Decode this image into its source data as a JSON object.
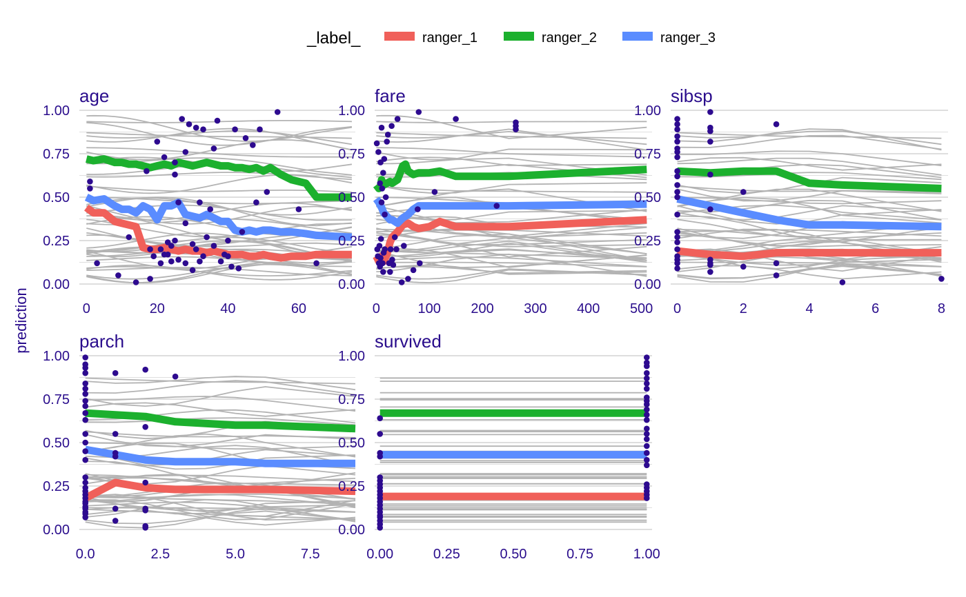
{
  "chart_data": {
    "type": "line",
    "ylabel": "prediction",
    "legend": {
      "title": "_label_",
      "position": "top",
      "entries": [
        {
          "name": "ranger_1",
          "color": "#f0605a"
        },
        {
          "name": "ranger_2",
          "color": "#1cb02e"
        },
        {
          "name": "ranger_3",
          "color": "#5a8cff"
        }
      ]
    },
    "colors": {
      "ice": "#b3b3b3",
      "points": "#2d0a8f",
      "grid": "#dedede",
      "text": "#2a0d8c"
    },
    "ylim": [
      0,
      1
    ],
    "yticks": [
      0,
      0.25,
      0.5,
      0.75,
      1
    ],
    "ytick_labels": [
      "0.00",
      "0.25",
      "0.50",
      "0.75",
      "1.00"
    ],
    "grid": true,
    "panels": [
      {
        "title": "age",
        "xlim": [
          -2,
          76
        ],
        "xticks": [
          0,
          20,
          40,
          60
        ],
        "xtick_labels": [
          "0",
          "20",
          "40",
          "60"
        ],
        "series": [
          {
            "name": "ranger_1",
            "x": [
              0,
              2,
              5,
              8,
              10,
              12,
              14,
              16,
              18,
              20,
              22,
              24,
              26,
              28,
              30,
              32,
              34,
              36,
              38,
              40,
              42,
              44,
              46,
              48,
              50,
              52,
              55,
              58,
              62,
              65,
              75
            ],
            "y": [
              0.44,
              0.41,
              0.41,
              0.36,
              0.35,
              0.34,
              0.33,
              0.21,
              0.2,
              0.2,
              0.21,
              0.2,
              0.19,
              0.2,
              0.19,
              0.19,
              0.18,
              0.19,
              0.18,
              0.17,
              0.17,
              0.17,
              0.16,
              0.16,
              0.17,
              0.16,
              0.15,
              0.16,
              0.16,
              0.17,
              0.17
            ]
          },
          {
            "name": "ranger_2",
            "x": [
              0,
              2,
              5,
              8,
              10,
              12,
              14,
              16,
              18,
              20,
              22,
              24,
              26,
              28,
              30,
              32,
              34,
              36,
              38,
              40,
              42,
              44,
              46,
              48,
              50,
              52,
              55,
              58,
              62,
              65,
              75
            ],
            "y": [
              0.72,
              0.71,
              0.72,
              0.7,
              0.7,
              0.69,
              0.69,
              0.68,
              0.67,
              0.68,
              0.69,
              0.68,
              0.7,
              0.69,
              0.68,
              0.69,
              0.7,
              0.69,
              0.68,
              0.68,
              0.67,
              0.67,
              0.66,
              0.67,
              0.65,
              0.67,
              0.63,
              0.6,
              0.58,
              0.5,
              0.5
            ]
          },
          {
            "name": "ranger_3",
            "x": [
              0,
              2,
              5,
              8,
              10,
              12,
              14,
              16,
              18,
              20,
              22,
              24,
              26,
              28,
              30,
              32,
              34,
              36,
              38,
              40,
              42,
              44,
              46,
              48,
              50,
              52,
              55,
              58,
              62,
              65,
              75
            ],
            "y": [
              0.5,
              0.48,
              0.49,
              0.45,
              0.43,
              0.43,
              0.41,
              0.45,
              0.43,
              0.37,
              0.45,
              0.45,
              0.47,
              0.4,
              0.39,
              0.38,
              0.4,
              0.38,
              0.36,
              0.36,
              0.31,
              0.3,
              0.31,
              0.3,
              0.31,
              0.31,
              0.3,
              0.3,
              0.29,
              0.28,
              0.27
            ]
          }
        ],
        "points": {
          "x": [
            1,
            1,
            3,
            9,
            12,
            14,
            17,
            18,
            18,
            19,
            20,
            21,
            21,
            22,
            22,
            23,
            23,
            24,
            24,
            25,
            25,
            25,
            26,
            26,
            27,
            28,
            28,
            28,
            29,
            30,
            30,
            31,
            31,
            32,
            32,
            33,
            33,
            34,
            35,
            36,
            36,
            37,
            38,
            39,
            40,
            40,
            41,
            42,
            43,
            44,
            45,
            47,
            48,
            49,
            51,
            54,
            60,
            65
          ],
          "y": [
            0.59,
            0.55,
            0.12,
            0.05,
            0.27,
            0.01,
            0.65,
            0.03,
            0.2,
            0.16,
            0.82,
            0.12,
            0.2,
            0.17,
            0.73,
            0.17,
            0.24,
            0.22,
            0.13,
            0.25,
            0.63,
            0.7,
            0.47,
            0.14,
            0.95,
            0.12,
            0.35,
            0.76,
            0.92,
            0.08,
            0.23,
            0.9,
            0.2,
            0.13,
            0.47,
            0.89,
            0.16,
            0.27,
            0.43,
            0.22,
            0.78,
            0.94,
            0.13,
            0.17,
            0.16,
            0.25,
            0.1,
            0.89,
            0.09,
            0.3,
            0.84,
            0.8,
            0.47,
            0.89,
            0.53,
            0.99,
            0.43,
            0.12
          ]
        }
      },
      {
        "title": "fare",
        "xlim": [
          -3,
          520
        ],
        "xticks": [
          0,
          100,
          200,
          300,
          400,
          500
        ],
        "xtick_labels": [
          "0",
          "100",
          "200",
          "300",
          "400",
          "500"
        ],
        "series": [
          {
            "name": "ranger_1",
            "x": [
              0,
              5,
              8,
              10,
              14,
              20,
              26,
              30,
              40,
              50,
              60,
              70,
              80,
              100,
              120,
              150,
              250,
              510
            ],
            "y": [
              0.16,
              0.13,
              0.12,
              0.16,
              0.13,
              0.17,
              0.24,
              0.27,
              0.3,
              0.34,
              0.35,
              0.33,
              0.32,
              0.33,
              0.36,
              0.33,
              0.33,
              0.37
            ]
          },
          {
            "name": "ranger_2",
            "x": [
              0,
              5,
              8,
              10,
              14,
              20,
              26,
              30,
              40,
              50,
              55,
              60,
              70,
              80,
              100,
              120,
              150,
              250,
              510
            ],
            "y": [
              0.57,
              0.55,
              0.56,
              0.6,
              0.57,
              0.58,
              0.59,
              0.58,
              0.6,
              0.68,
              0.69,
              0.65,
              0.63,
              0.64,
              0.64,
              0.65,
              0.62,
              0.62,
              0.66
            ]
          },
          {
            "name": "ranger_3",
            "x": [
              0,
              5,
              8,
              10,
              14,
              20,
              26,
              30,
              40,
              50,
              60,
              70,
              80,
              100,
              120,
              150,
              250,
              510
            ],
            "y": [
              0.49,
              0.47,
              0.45,
              0.44,
              0.41,
              0.39,
              0.37,
              0.37,
              0.35,
              0.38,
              0.4,
              0.43,
              0.45,
              0.45,
              0.45,
              0.45,
              0.45,
              0.46
            ]
          }
        ],
        "points": {
          "x": [
            1,
            2,
            3,
            4,
            5,
            6,
            7,
            7,
            8,
            8,
            9,
            10,
            10,
            11,
            12,
            13,
            13,
            14,
            15,
            16,
            16,
            18,
            20,
            22,
            24,
            26,
            27,
            29,
            30,
            32,
            35,
            38,
            40,
            48,
            52,
            60,
            70,
            78,
            80,
            82,
            110,
            150,
            227,
            263,
            263,
            263
          ],
          "y": [
            0.81,
            0.2,
            0.16,
            0.76,
            0.12,
            0.22,
            0.58,
            0.1,
            0.7,
            0.15,
            0.26,
            0.47,
            0.9,
            0.55,
            0.12,
            0.64,
            0.07,
            0.18,
            0.72,
            0.2,
            0.4,
            0.5,
            0.82,
            0.86,
            0.12,
            0.07,
            0.2,
            0.91,
            0.14,
            0.11,
            0.27,
            0.2,
            0.95,
            0.01,
            0.22,
            0.03,
            0.08,
            0.43,
            0.99,
            0.12,
            0.53,
            0.95,
            0.45,
            0.93,
            0.91,
            0.89
          ]
        }
      },
      {
        "title": "sibsp",
        "xlim": [
          -0.2,
          8.2
        ],
        "xticks": [
          0,
          2,
          4,
          6,
          8
        ],
        "xtick_labels": [
          "0",
          "2",
          "4",
          "6",
          "8"
        ],
        "series": [
          {
            "name": "ranger_1",
            "x": [
              0,
              1,
              2,
              3,
              4,
              5,
              8
            ],
            "y": [
              0.19,
              0.17,
              0.16,
              0.18,
              0.18,
              0.18,
              0.18
            ]
          },
          {
            "name": "ranger_2",
            "x": [
              0,
              1,
              2,
              3,
              4,
              5,
              8
            ],
            "y": [
              0.65,
              0.64,
              0.65,
              0.65,
              0.58,
              0.57,
              0.55
            ]
          },
          {
            "name": "ranger_3",
            "x": [
              0,
              1,
              2,
              3,
              4,
              5,
              8
            ],
            "y": [
              0.49,
              0.45,
              0.41,
              0.37,
              0.34,
              0.34,
              0.33
            ]
          }
        ],
        "points": {
          "x": [
            0,
            0,
            0,
            0,
            0,
            0,
            0,
            0,
            0,
            0,
            0,
            0,
            0,
            0,
            0,
            0,
            0,
            0,
            0,
            0,
            0,
            0,
            1,
            1,
            1,
            1,
            1,
            1,
            1,
            1,
            1,
            1,
            2,
            2,
            3,
            3,
            3,
            5,
            8
          ],
          "y": [
            0.95,
            0.92,
            0.89,
            0.85,
            0.82,
            0.78,
            0.76,
            0.73,
            0.65,
            0.62,
            0.57,
            0.53,
            0.5,
            0.4,
            0.3,
            0.27,
            0.24,
            0.2,
            0.16,
            0.14,
            0.12,
            0.09,
            0.99,
            0.9,
            0.88,
            0.82,
            0.63,
            0.43,
            0.14,
            0.12,
            0.11,
            0.07,
            0.53,
            0.1,
            0.92,
            0.12,
            0.05,
            0.01,
            0.03
          ]
        }
      },
      {
        "title": "parch",
        "xlim": [
          -0.2,
          9
        ],
        "xticks": [
          0,
          2.5,
          5,
          7.5
        ],
        "xtick_labels": [
          "0.0",
          "2.5",
          "5.0",
          "7.5"
        ],
        "series": [
          {
            "name": "ranger_1",
            "x": [
              0,
              1,
              2,
              3,
              4,
              5,
              6,
              9
            ],
            "y": [
              0.18,
              0.27,
              0.24,
              0.23,
              0.23,
              0.23,
              0.23,
              0.22
            ]
          },
          {
            "name": "ranger_2",
            "x": [
              0,
              1,
              2,
              3,
              4,
              5,
              6,
              9
            ],
            "y": [
              0.67,
              0.66,
              0.65,
              0.62,
              0.61,
              0.6,
              0.6,
              0.58
            ]
          },
          {
            "name": "ranger_3",
            "x": [
              0,
              1,
              2,
              3,
              4,
              5,
              6,
              9
            ],
            "y": [
              0.46,
              0.43,
              0.4,
              0.39,
              0.39,
              0.39,
              0.38,
              0.38
            ]
          }
        ],
        "points": {
          "x": [
            0,
            0,
            0,
            0,
            0,
            0,
            0,
            0,
            0,
            0,
            0,
            0,
            0,
            0,
            0,
            0,
            0,
            0,
            0,
            0,
            0,
            0,
            0,
            0,
            0,
            0,
            0,
            0,
            1,
            1,
            1,
            1,
            1,
            1,
            2,
            2,
            2,
            2,
            2,
            2,
            2,
            3
          ],
          "y": [
            0.99,
            0.95,
            0.93,
            0.9,
            0.84,
            0.81,
            0.78,
            0.74,
            0.71,
            0.67,
            0.63,
            0.55,
            0.5,
            0.45,
            0.4,
            0.3,
            0.27,
            0.24,
            0.22,
            0.2,
            0.18,
            0.16,
            0.15,
            0.13,
            0.12,
            0.1,
            0.09,
            0.07,
            0.9,
            0.55,
            0.44,
            0.42,
            0.12,
            0.05,
            0.92,
            0.59,
            0.27,
            0.12,
            0.11,
            0.02,
            0.01,
            0.88
          ]
        }
      },
      {
        "title": "survived",
        "xlim": [
          -0.02,
          1.02
        ],
        "xticks": [
          0,
          0.25,
          0.5,
          0.75,
          1
        ],
        "xtick_labels": [
          "0.00",
          "0.25",
          "0.50",
          "0.75",
          "1.00"
        ],
        "series": [
          {
            "name": "ranger_1",
            "x": [
              0,
              1
            ],
            "y": [
              0.19,
              0.19
            ]
          },
          {
            "name": "ranger_2",
            "x": [
              0,
              1
            ],
            "y": [
              0.67,
              0.67
            ]
          },
          {
            "name": "ranger_3",
            "x": [
              0,
              1
            ],
            "y": [
              0.43,
              0.43
            ]
          }
        ],
        "points": {
          "x": [
            0,
            0,
            0,
            0,
            0,
            0,
            0,
            0,
            0,
            0,
            0,
            0,
            0,
            0,
            0,
            0,
            0,
            0,
            0,
            0,
            1,
            1,
            1,
            1,
            1,
            1,
            1,
            1,
            1,
            1,
            1,
            1,
            1,
            1,
            1,
            1,
            1,
            1,
            1,
            1,
            1,
            1,
            1,
            1,
            1
          ],
          "y": [
            0.64,
            0.55,
            0.44,
            0.42,
            0.3,
            0.28,
            0.26,
            0.24,
            0.22,
            0.2,
            0.18,
            0.16,
            0.14,
            0.12,
            0.1,
            0.08,
            0.07,
            0.05,
            0.03,
            0.01,
            0.99,
            0.96,
            0.94,
            0.9,
            0.87,
            0.84,
            0.81,
            0.76,
            0.74,
            0.72,
            0.69,
            0.66,
            0.63,
            0.58,
            0.55,
            0.52,
            0.48,
            0.44,
            0.4,
            0.37,
            0.26,
            0.24,
            0.22,
            0.2,
            0.18
          ]
        }
      }
    ]
  }
}
